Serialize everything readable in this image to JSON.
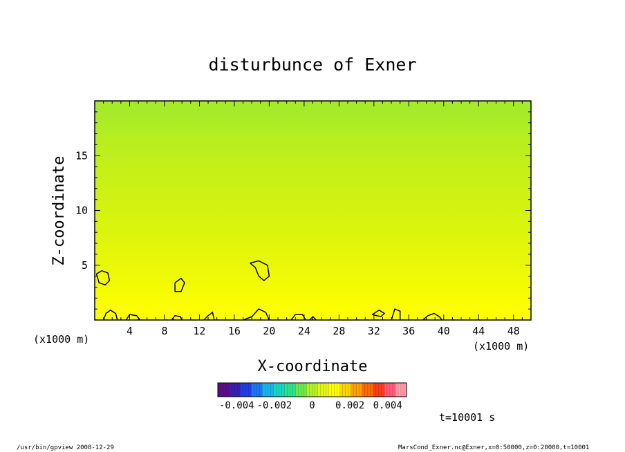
{
  "chart_data": {
    "type": "heatmap",
    "title": "disturbunce of Exner",
    "xlabel": "X-coordinate",
    "ylabel": "Z-coordinate",
    "x_unit_left": "(x1000 m)",
    "x_unit_right": "(x1000 m)",
    "xlim": [
      0,
      50
    ],
    "ylim": [
      0,
      20
    ],
    "x_ticks": [
      4,
      8,
      12,
      16,
      20,
      24,
      28,
      32,
      36,
      40,
      44,
      48
    ],
    "y_ticks": [
      5,
      10,
      15
    ],
    "colorbar": {
      "range": [
        -0.005,
        0.005
      ],
      "tick_values": [
        -0.004,
        -0.002,
        0,
        0.002,
        0.004
      ],
      "tick_labels": [
        "-0.004",
        "-0.002",
        "0",
        "0.002",
        "0.004"
      ],
      "colors": [
        "#5a0d8a",
        "#3a1fb0",
        "#1f3fe0",
        "#1b78f0",
        "#19b4e8",
        "#17d8c0",
        "#2fe08c",
        "#6fe84c",
        "#b4f028",
        "#e6f414",
        "#ffff00",
        "#ffd400",
        "#ffa000",
        "#ff6a00",
        "#ff3a20",
        "#ff5a78",
        "#ff9aa8"
      ]
    },
    "field_description": "values near zero; greenish (~-0.0002) aloft, yellow (~+0.0002) near surface",
    "bands": [
      {
        "z": 19.0,
        "color": "#a6ea2a"
      },
      {
        "z": 17.0,
        "color": "#b4ee22"
      },
      {
        "z": 14.0,
        "color": "#c4f018"
      },
      {
        "z": 11.0,
        "color": "#d0f212"
      },
      {
        "z": 8.0,
        "color": "#dcf40c"
      },
      {
        "z": 5.0,
        "color": "#eaf808"
      },
      {
        "z": 2.5,
        "color": "#f6fc02"
      },
      {
        "z": 0.5,
        "color": "#ffff00"
      }
    ],
    "contours": [
      {
        "name": "contour-left",
        "points": [
          [
            0.2,
            4.2
          ],
          [
            0.8,
            4.5
          ],
          [
            1.5,
            4.3
          ],
          [
            1.7,
            3.6
          ],
          [
            1.2,
            3.2
          ],
          [
            0.5,
            3.4
          ],
          [
            0.2,
            4.2
          ]
        ]
      },
      {
        "name": "contour-20",
        "points": [
          [
            17.8,
            5.2
          ],
          [
            18.8,
            5.4
          ],
          [
            19.8,
            5.0
          ],
          [
            20.0,
            4.0
          ],
          [
            19.4,
            3.6
          ],
          [
            18.8,
            4.0
          ],
          [
            18.4,
            4.8
          ],
          [
            17.8,
            5.2
          ]
        ]
      },
      {
        "name": "contour-9",
        "points": [
          [
            9.2,
            3.4
          ],
          [
            9.9,
            3.8
          ],
          [
            10.3,
            3.4
          ],
          [
            9.9,
            2.6
          ],
          [
            9.2,
            2.6
          ],
          [
            9.2,
            3.4
          ]
        ]
      },
      {
        "name": "contour-bottom-1",
        "points": [
          [
            1.0,
            0.0
          ],
          [
            1.3,
            0.6
          ],
          [
            1.8,
            0.9
          ],
          [
            2.4,
            0.6
          ],
          [
            2.6,
            0.0
          ]
        ]
      },
      {
        "name": "contour-bottom-2",
        "points": [
          [
            3.6,
            0.0
          ],
          [
            4.0,
            0.5
          ],
          [
            4.8,
            0.4
          ],
          [
            5.2,
            0.0
          ]
        ]
      },
      {
        "name": "contour-bottom-3",
        "points": [
          [
            8.8,
            0.0
          ],
          [
            9.2,
            0.4
          ],
          [
            9.8,
            0.3
          ],
          [
            10.0,
            0.0
          ]
        ]
      },
      {
        "name": "contour-bottom-4",
        "points": [
          [
            12.5,
            0.0
          ],
          [
            13.0,
            0.4
          ],
          [
            13.5,
            0.7
          ],
          [
            13.7,
            0.0
          ]
        ]
      },
      {
        "name": "contour-bottom-5",
        "points": [
          [
            17.0,
            0.0
          ],
          [
            18.0,
            0.3
          ],
          [
            18.8,
            1.0
          ],
          [
            19.6,
            0.7
          ],
          [
            20.0,
            0.0
          ]
        ]
      },
      {
        "name": "contour-bottom-6",
        "points": [
          [
            22.5,
            0.0
          ],
          [
            23.0,
            0.5
          ],
          [
            23.8,
            0.5
          ],
          [
            24.2,
            0.0
          ]
        ]
      },
      {
        "name": "contour-bottom-7",
        "points": [
          [
            24.6,
            0.0
          ],
          [
            25.0,
            0.3
          ],
          [
            25.4,
            0.0
          ]
        ]
      },
      {
        "name": "contour-bottom-8",
        "points": [
          [
            31.8,
            0.5
          ],
          [
            32.6,
            0.9
          ],
          [
            33.2,
            0.6
          ],
          [
            32.8,
            0.3
          ],
          [
            31.8,
            0.5
          ]
        ]
      },
      {
        "name": "contour-bottom-9",
        "points": [
          [
            34.0,
            0.0
          ],
          [
            34.4,
            1.0
          ],
          [
            35.0,
            0.8
          ],
          [
            35.0,
            0.0
          ]
        ]
      },
      {
        "name": "contour-bottom-10",
        "points": [
          [
            37.6,
            0.0
          ],
          [
            38.2,
            0.4
          ],
          [
            38.9,
            0.6
          ],
          [
            39.5,
            0.3
          ],
          [
            39.8,
            0.0
          ]
        ]
      }
    ]
  },
  "footer": {
    "time_label": "t=10001 s",
    "left_info": "/usr/bin/gpview   2008-12-29",
    "right_info": "MarsCond_Exner.nc@Exner,x=0:50000,z=0:20000,t=10001"
  }
}
